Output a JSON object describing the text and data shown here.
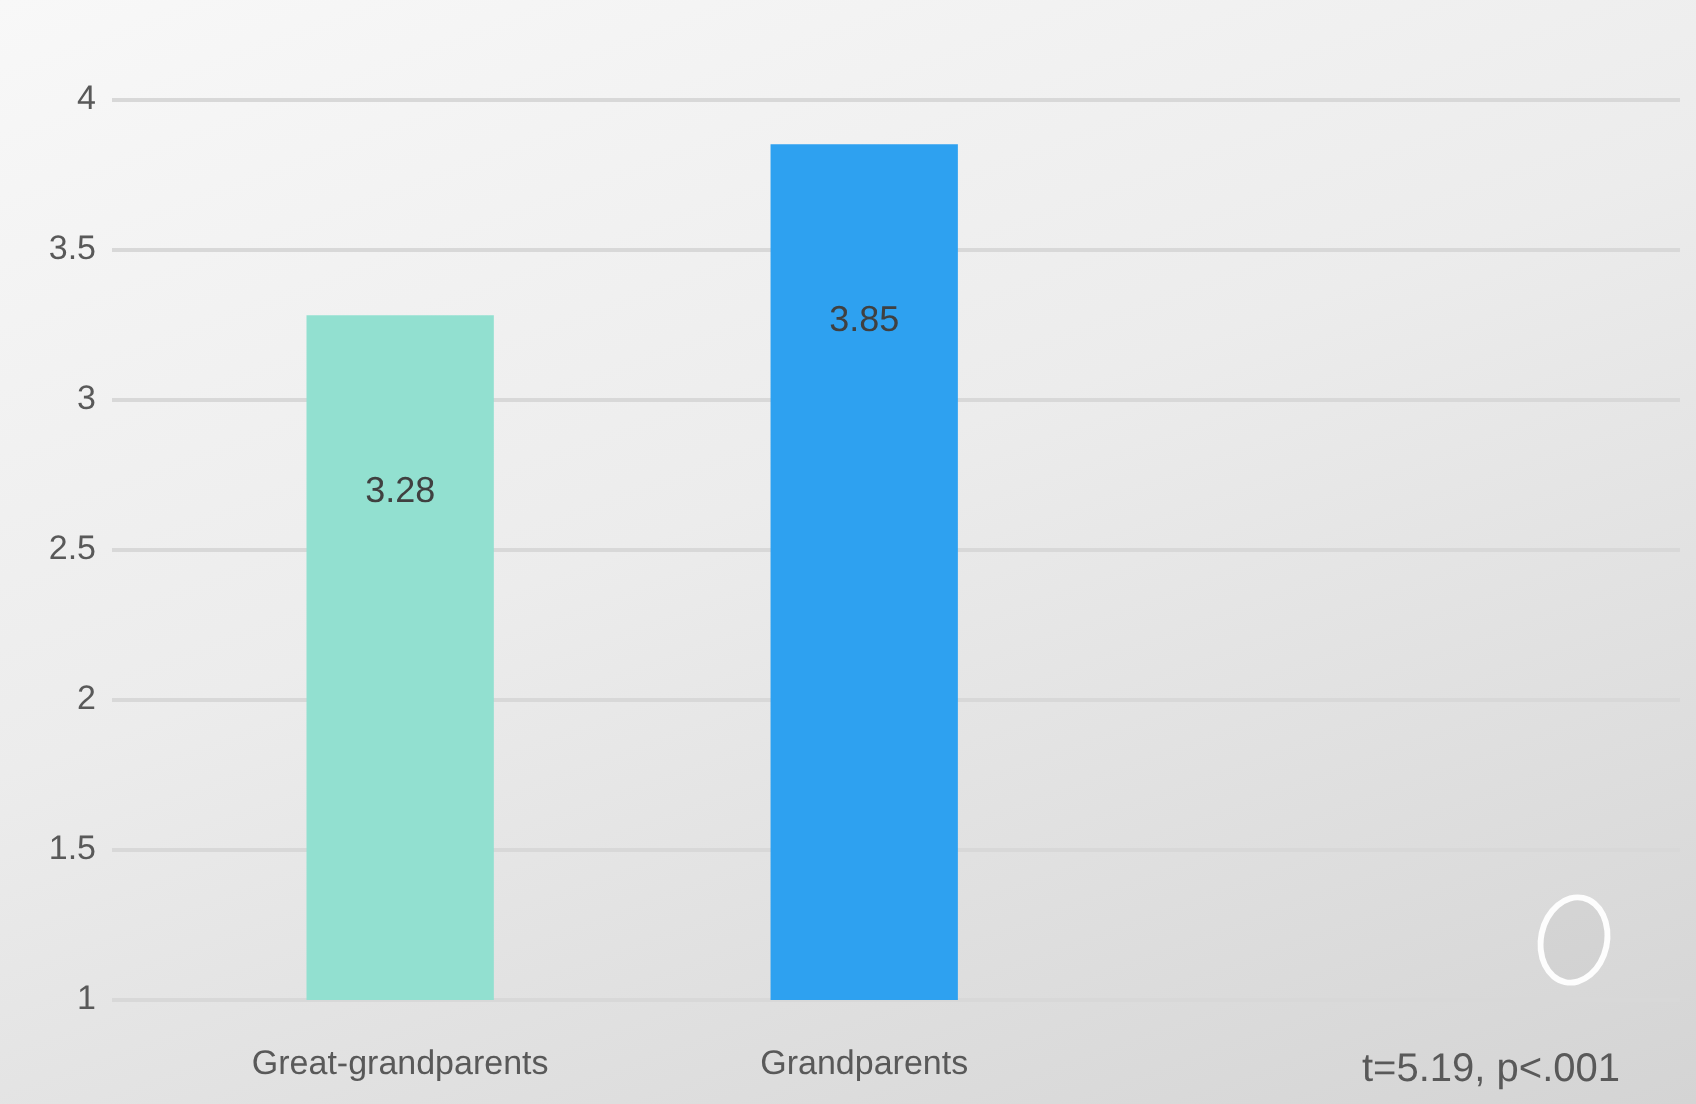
{
  "chart_data": {
    "type": "bar",
    "categories": [
      "Great-grandparents",
      "Grandparents"
    ],
    "values": [
      3.28,
      3.85
    ],
    "colors": [
      "#92e0d0",
      "#2ea1f0"
    ],
    "ylim": [
      1,
      4
    ],
    "yticks": [
      1,
      1.5,
      2,
      2.5,
      3,
      3.5,
      4
    ],
    "grid": "y",
    "data_labels": true,
    "annotations": [
      "t=5.19, p<.001"
    ]
  }
}
